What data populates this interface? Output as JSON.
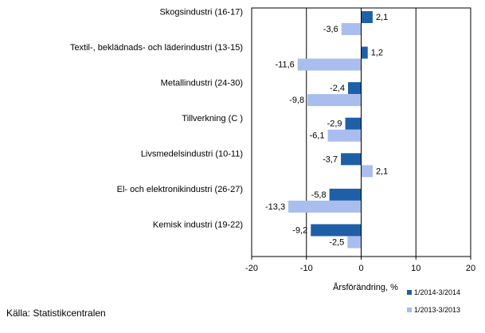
{
  "chart_data": {
    "type": "bar",
    "orientation": "horizontal",
    "categories": [
      "Skogsindustri (16-17)",
      "Textil-, beklädnads- och läderindustri (13-15)",
      "Metallindustri (24-30)",
      "Tillverkning (C )",
      "Livsmedelsindustri (10-11)",
      "El- och elektronikindustri (26-27)",
      "Kemisk industri (19-22)"
    ],
    "series": [
      {
        "name": "1/2014-3/2014",
        "values": [
          2.1,
          1.2,
          -2.4,
          -2.9,
          -3.7,
          -5.8,
          -9.2
        ],
        "color": "#1f5fa8"
      },
      {
        "name": "1/2013-3/2013",
        "values": [
          -3.6,
          -11.6,
          -9.8,
          -6.1,
          2.1,
          -13.3,
          -2.5
        ],
        "color": "#a9bdee"
      }
    ],
    "data_labels": [
      [
        "2,1",
        "1,2",
        "-2,4",
        "-2,9",
        "-3,7",
        "-5,8",
        "-9,2"
      ],
      [
        "-3,6",
        "-11,6",
        "-9,8",
        "-6,1",
        "2,1",
        "-13,3",
        "-2,5"
      ]
    ],
    "xlim": [
      -20,
      20
    ],
    "xticks": [
      -20,
      -10,
      0,
      10,
      20
    ],
    "xlabel": "Årsförändring, %",
    "title": "",
    "grid": "vertical lines at -10 and 10",
    "legend_position": "bottom-right"
  },
  "source_text": "Källa: Statistikcentralen"
}
